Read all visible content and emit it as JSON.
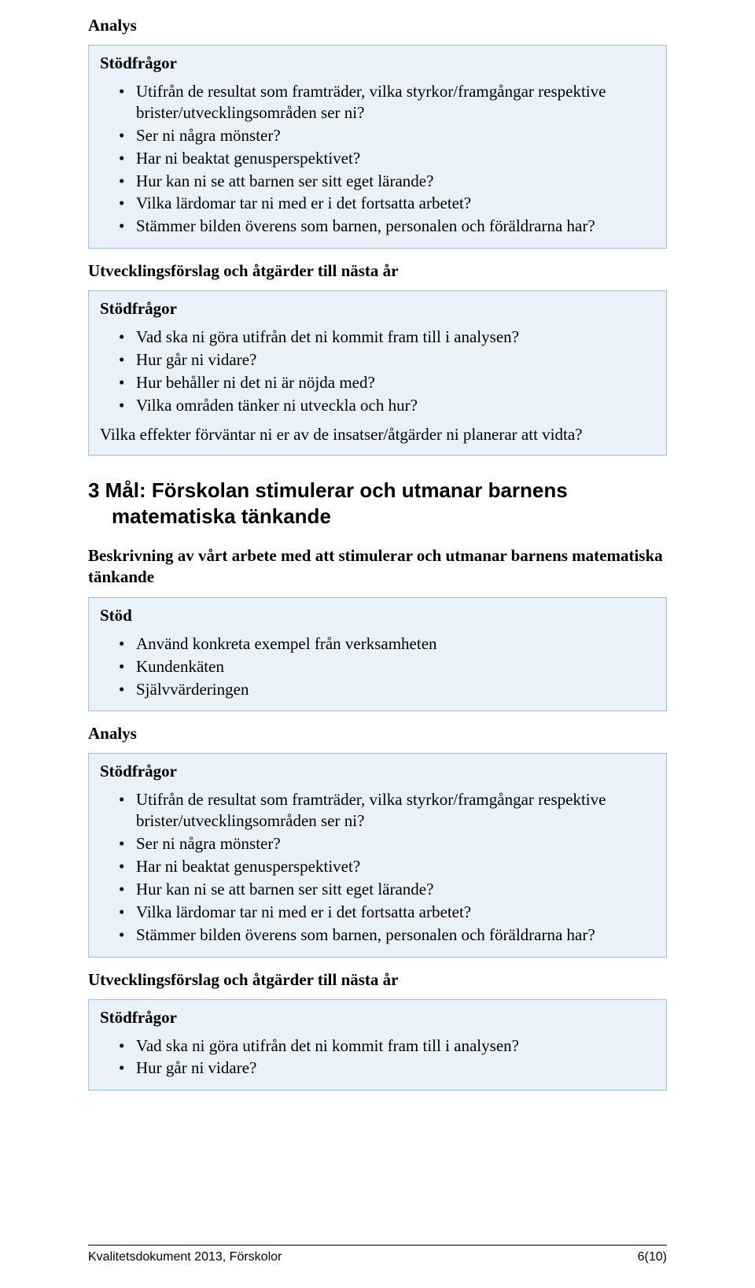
{
  "colors": {
    "box_border": "#92c4de",
    "box_background": "#e9f2f9",
    "text": "#000000",
    "page_background": "#ffffff",
    "footer_rule": "#000000"
  },
  "typography": {
    "body_font": "Times New Roman",
    "heading_font": "Arial",
    "body_size_pt": 16,
    "goal_heading_size_pt": 20,
    "footer_size_pt": 12
  },
  "analysis1": {
    "heading": "Analys",
    "support_label": "Stödfrågor",
    "bullets": [
      "Utifrån de resultat som framträder, vilka styrkor/framgångar respektive brister/utvecklingsområden ser ni?",
      "Ser ni några mönster?",
      "Har ni beaktat genusperspektivet?",
      "Hur kan ni se att barnen ser sitt eget lärande?",
      "Vilka lärdomar tar ni med er i det fortsatta arbetet?",
      "Stämmer bilden överens som barnen, personalen och föräldrarna har?"
    ]
  },
  "dev1": {
    "heading": "Utvecklingsförslag och åtgärder till nästa år",
    "support_label": "Stödfrågor",
    "bullets": [
      "Vad ska ni göra utifrån det ni kommit fram till i analysen?",
      "Hur går ni vidare?",
      "Hur behåller ni det ni är nöjda med?",
      "Vilka områden tänker ni utveckla och hur?"
    ],
    "question": "Vilka effekter förväntar ni er av de insatser/åtgärder ni planerar att vidta?"
  },
  "goal": {
    "heading": "3 Mål: Förskolan stimulerar och utmanar barnens matematiska tänkande",
    "intro": "Beskrivning av vårt arbete med att stimulerar och utmanar barnens matematiska tänkande",
    "support_label": "Stöd",
    "bullets": [
      "Använd konkreta exempel från verksamheten",
      "Kundenkäten",
      "Självvärderingen"
    ]
  },
  "analysis2": {
    "heading": "Analys",
    "support_label": "Stödfrågor",
    "bullets": [
      "Utifrån de resultat som framträder, vilka styrkor/framgångar respektive brister/utvecklingsområden ser ni?",
      "Ser ni några mönster?",
      "Har ni beaktat genusperspektivet?",
      "Hur kan ni se att barnen ser sitt eget lärande?",
      "Vilka lärdomar tar ni med er i det fortsatta arbetet?",
      "Stämmer bilden överens som barnen, personalen och föräldrarna har?"
    ]
  },
  "dev2": {
    "heading": "Utvecklingsförslag och åtgärder till nästa år",
    "support_label": "Stödfrågor",
    "bullets": [
      "Vad ska ni göra utifrån det ni kommit fram till i analysen?",
      "Hur går ni vidare?"
    ]
  },
  "footer": {
    "left": "Kvalitetsdokument 2013, Förskolor",
    "right": "6(10)"
  }
}
